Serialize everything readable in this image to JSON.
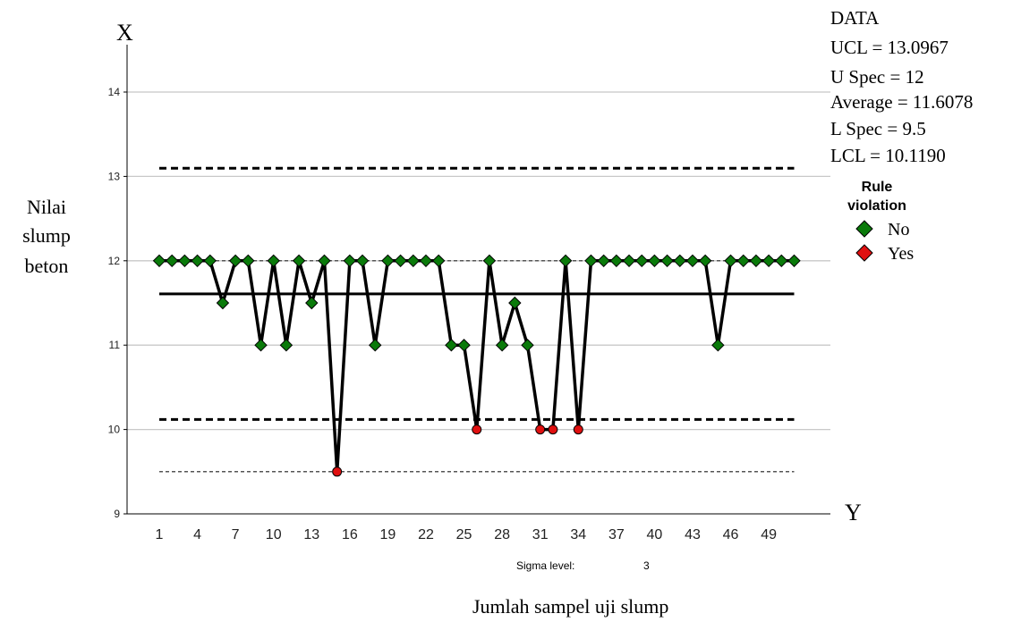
{
  "chart_data": {
    "type": "line",
    "x_axis_marker": "Y",
    "y_axis_marker": "X",
    "xlabel": "Jumlah sampel uji slump",
    "ylabel": [
      "Nilai",
      "slump",
      "beton"
    ],
    "ylim": [
      9,
      14.5
    ],
    "xlim": [
      0,
      52
    ],
    "yticks": [
      9,
      10,
      11,
      12,
      13,
      14
    ],
    "xticks": [
      1,
      4,
      7,
      10,
      13,
      16,
      19,
      22,
      25,
      28,
      31,
      34,
      37,
      40,
      43,
      46,
      49
    ],
    "grid": "horizontal",
    "info_box": {
      "title": "DATA",
      "lines": [
        "UCL = 13.0967",
        "U Spec = 12",
        "Average = 11.6078",
        "L Spec = 9.5",
        "LCL = 10.1190"
      ]
    },
    "limits": {
      "ucl": 13.0967,
      "uspec": 12,
      "average": 11.6078,
      "lspec": 9.5,
      "lcl": 10.119
    },
    "legend": {
      "title_line1": "Rule",
      "title_line2": "violation",
      "placement": "right",
      "entries": [
        {
          "label": "No",
          "color": "#0a7a0a"
        },
        {
          "label": "Yes",
          "color": "#e01010"
        }
      ]
    },
    "sigma_label": "Sigma level:",
    "sigma_value": "3",
    "series": [
      {
        "x": [
          1,
          2,
          3,
          4,
          5,
          6,
          7,
          8,
          9,
          10,
          11,
          12,
          13,
          14,
          15,
          16,
          17,
          18,
          19,
          20,
          21,
          22,
          23,
          24,
          25,
          26,
          27,
          28,
          29,
          30,
          31,
          32,
          33,
          34,
          35,
          36,
          37,
          38,
          39,
          40,
          41,
          42,
          43,
          44,
          45,
          46,
          47,
          48,
          49,
          50,
          51
        ],
        "values": [
          12,
          12,
          12,
          12,
          12,
          11.5,
          12,
          12,
          11,
          12,
          11,
          12,
          11.5,
          12,
          9.5,
          12,
          12,
          11,
          12,
          12,
          12,
          12,
          12,
          11,
          11,
          10,
          12,
          11,
          11.5,
          11,
          10,
          10,
          12,
          10,
          12,
          12,
          12,
          12,
          12,
          12,
          12,
          12,
          12,
          12,
          11,
          12,
          12,
          12,
          12,
          12,
          12
        ],
        "violation": [
          0,
          0,
          0,
          0,
          0,
          0,
          0,
          0,
          0,
          0,
          0,
          0,
          0,
          0,
          1,
          0,
          0,
          0,
          0,
          0,
          0,
          0,
          0,
          0,
          0,
          1,
          0,
          0,
          0,
          0,
          1,
          1,
          0,
          1,
          0,
          0,
          0,
          0,
          0,
          0,
          0,
          0,
          0,
          0,
          0,
          0,
          0,
          0,
          0,
          0,
          0
        ]
      }
    ]
  }
}
